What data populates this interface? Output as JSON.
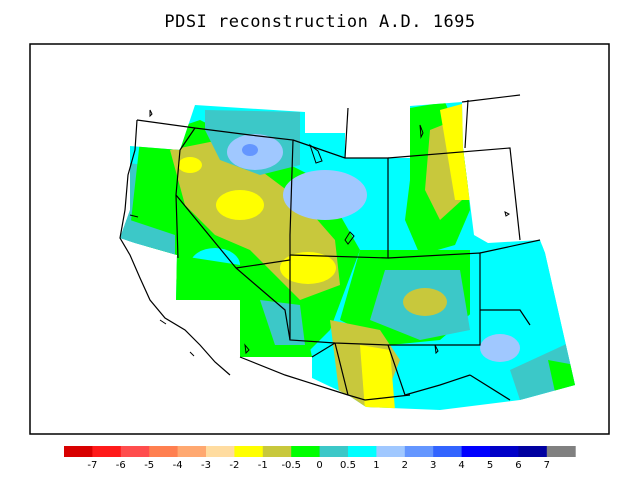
{
  "map": {
    "title": "PDSI reconstruction A.D. 1695",
    "variable": "PDSI",
    "year": "1695"
  },
  "legend": {
    "bins": [
      {
        "color": "#d80000",
        "label": "-7"
      },
      {
        "color": "#ff1a1a",
        "label": "-6"
      },
      {
        "color": "#ff4d4d",
        "label": "-5"
      },
      {
        "color": "#ff7f50",
        "label": "-4"
      },
      {
        "color": "#ffa870",
        "label": "-3"
      },
      {
        "color": "#ffdca0",
        "label": "-2"
      },
      {
        "color": "#ffff00",
        "label": "-1"
      },
      {
        "color": "#c8c83c",
        "label": "-0.5"
      },
      {
        "color": "#00ff00",
        "label": "0"
      },
      {
        "color": "#3cc8c8",
        "label": "0.5"
      },
      {
        "color": "#00ffff",
        "label": "1"
      },
      {
        "color": "#a0c8ff",
        "label": "2"
      },
      {
        "color": "#6496ff",
        "label": "3"
      },
      {
        "color": "#3264ff",
        "label": "4"
      },
      {
        "color": "#0000ff",
        "label": "5"
      },
      {
        "color": "#0000c8",
        "label": "6"
      },
      {
        "color": "#0000a0",
        "label": "7"
      },
      {
        "color": "#808080",
        "label": ""
      }
    ]
  },
  "colors": {
    "dry_strong": "#ffff00",
    "dry_mild": "#c8c83c",
    "neutral": "#00ff00",
    "wet_mild": "#3cc8c8",
    "wet": "#00ffff",
    "wet_strong": "#a0c8ff",
    "wet_stronger": "#6496ff"
  }
}
